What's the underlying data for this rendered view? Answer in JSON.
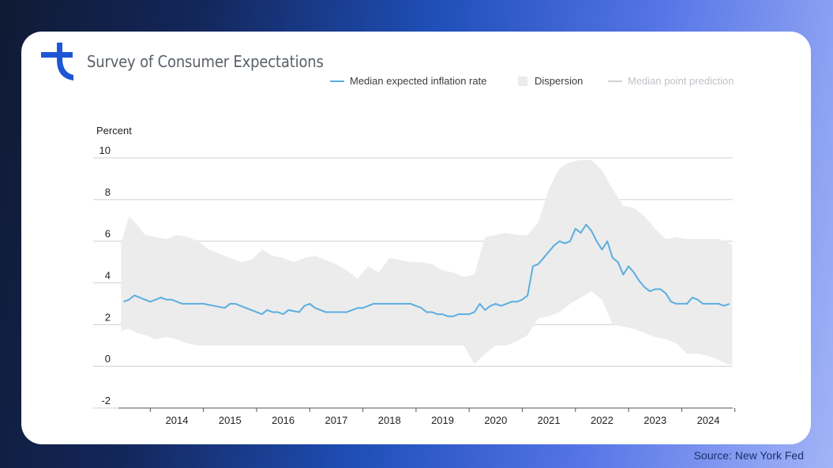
{
  "header": {
    "title": "Survey of Consumer Expectations",
    "logo_icon": "brand-logo-icon"
  },
  "footer": {
    "source": "Source: New York Fed"
  },
  "colors": {
    "accent": "#1e56d6",
    "series_line": "#5aaee0",
    "band": "#ececec"
  },
  "chart_data": {
    "type": "line",
    "title": "",
    "ylabel": "Percent",
    "xlabel": "",
    "ylim": [
      -2,
      10
    ],
    "xlim": [
      2013.4,
      2024.96
    ],
    "yticks": [
      "10",
      "8",
      "6",
      "4",
      "2",
      "0",
      "-2"
    ],
    "xticks": [
      "2014",
      "2015",
      "2016",
      "2017",
      "2018",
      "2019",
      "2020",
      "2021",
      "2022",
      "2023",
      "2024"
    ],
    "legend": [
      "Median expected inflation rate",
      "Dispersion",
      "Median point prediction"
    ],
    "legend_position": "top-right",
    "series": [
      {
        "name": "Median expected inflation rate",
        "x": [
          2013.5,
          2013.6,
          2013.7,
          2013.8,
          2013.9,
          2014.0,
          2014.1,
          2014.2,
          2014.3,
          2014.4,
          2014.5,
          2014.6,
          2014.8,
          2015.0,
          2015.2,
          2015.4,
          2015.5,
          2015.6,
          2015.7,
          2015.8,
          2016.0,
          2016.1,
          2016.2,
          2016.3,
          2016.4,
          2016.5,
          2016.6,
          2016.8,
          2016.9,
          2017.0,
          2017.1,
          2017.2,
          2017.3,
          2017.4,
          2017.5,
          2017.7,
          2017.9,
          2018.0,
          2018.2,
          2018.3,
          2018.4,
          2018.5,
          2018.6,
          2018.7,
          2018.9,
          2019.0,
          2019.1,
          2019.2,
          2019.3,
          2019.4,
          2019.5,
          2019.6,
          2019.7,
          2019.8,
          2019.9,
          2020.0,
          2020.1,
          2020.2,
          2020.3,
          2020.4,
          2020.5,
          2020.6,
          2020.7,
          2020.8,
          2020.9,
          2021.0,
          2021.1,
          2021.2,
          2021.3,
          2021.4,
          2021.5,
          2021.6,
          2021.7,
          2021.8,
          2021.9,
          2022.0,
          2022.1,
          2022.2,
          2022.3,
          2022.4,
          2022.5,
          2022.6,
          2022.7,
          2022.8,
          2022.9,
          2023.0,
          2023.1,
          2023.2,
          2023.3,
          2023.4,
          2023.5,
          2023.6,
          2023.7,
          2023.8,
          2023.9,
          2024.0,
          2024.1,
          2024.2,
          2024.3,
          2024.4,
          2024.5,
          2024.6,
          2024.7,
          2024.8,
          2024.9
        ],
        "values": [
          3.1,
          3.2,
          3.4,
          3.3,
          3.2,
          3.1,
          3.2,
          3.3,
          3.2,
          3.2,
          3.1,
          3.0,
          3.0,
          3.0,
          2.9,
          2.8,
          3.0,
          3.0,
          2.9,
          2.8,
          2.6,
          2.5,
          2.7,
          2.6,
          2.6,
          2.5,
          2.7,
          2.6,
          2.9,
          3.0,
          2.8,
          2.7,
          2.6,
          2.6,
          2.6,
          2.6,
          2.8,
          2.8,
          3.0,
          3.0,
          3.0,
          3.0,
          3.0,
          3.0,
          3.0,
          2.9,
          2.8,
          2.6,
          2.6,
          2.5,
          2.5,
          2.4,
          2.4,
          2.5,
          2.5,
          2.5,
          2.6,
          3.0,
          2.7,
          2.9,
          3.0,
          2.9,
          3.0,
          3.1,
          3.1,
          3.2,
          3.4,
          4.8,
          4.9,
          5.2,
          5.5,
          5.8,
          6.0,
          5.9,
          6.0,
          6.6,
          6.4,
          6.8,
          6.5,
          6.0,
          5.6,
          6.0,
          5.2,
          5.0,
          4.4,
          4.8,
          4.5,
          4.1,
          3.8,
          3.6,
          3.7,
          3.7,
          3.5,
          3.1,
          3.0,
          3.0,
          3.0,
          3.3,
          3.2,
          3.0,
          3.0,
          3.0,
          3.0,
          2.9,
          3.0
        ]
      }
    ],
    "dispersion": {
      "x": [
        2013.45,
        2013.6,
        2013.75,
        2013.9,
        2014.1,
        2014.3,
        2014.5,
        2014.7,
        2014.9,
        2015.1,
        2015.3,
        2015.5,
        2015.7,
        2015.9,
        2016.1,
        2016.3,
        2016.5,
        2016.7,
        2016.9,
        2017.1,
        2017.3,
        2017.5,
        2017.7,
        2017.9,
        2018.1,
        2018.3,
        2018.5,
        2018.7,
        2018.9,
        2019.1,
        2019.3,
        2019.5,
        2019.7,
        2019.9,
        2020.1,
        2020.3,
        2020.5,
        2020.7,
        2020.9,
        2021.1,
        2021.3,
        2021.5,
        2021.7,
        2021.9,
        2022.1,
        2022.3,
        2022.5,
        2022.7,
        2022.9,
        2023.1,
        2023.3,
        2023.5,
        2023.7,
        2023.9,
        2024.1,
        2024.3,
        2024.5,
        2024.7,
        2024.85,
        2024.95
      ],
      "upper": [
        5.9,
        7.2,
        6.8,
        6.3,
        6.2,
        6.1,
        6.3,
        6.2,
        6.0,
        5.6,
        5.4,
        5.2,
        5.0,
        5.1,
        5.6,
        5.3,
        5.2,
        5.0,
        5.2,
        5.3,
        5.1,
        4.9,
        4.6,
        4.2,
        4.8,
        4.5,
        5.2,
        5.1,
        5.0,
        5.0,
        4.9,
        4.6,
        4.5,
        4.3,
        4.4,
        6.2,
        6.3,
        6.4,
        6.3,
        6.3,
        6.9,
        8.5,
        9.5,
        9.8,
        9.9,
        9.9,
        9.4,
        8.5,
        7.7,
        7.6,
        7.2,
        6.6,
        6.1,
        6.2,
        6.1,
        6.1,
        6.1,
        6.1,
        6.0,
        5.8
      ],
      "lower": [
        1.7,
        1.8,
        1.6,
        1.5,
        1.3,
        1.4,
        1.3,
        1.1,
        1.0,
        1.0,
        1.0,
        1.0,
        1.0,
        1.0,
        1.0,
        1.0,
        1.0,
        1.0,
        1.0,
        1.0,
        1.0,
        1.0,
        1.0,
        1.0,
        1.0,
        1.0,
        1.0,
        1.0,
        1.0,
        1.0,
        1.0,
        1.0,
        1.0,
        1.0,
        0.1,
        0.6,
        1.0,
        1.0,
        1.2,
        1.5,
        2.3,
        2.4,
        2.6,
        3.0,
        3.3,
        3.6,
        3.2,
        2.0,
        1.9,
        1.8,
        1.6,
        1.4,
        1.3,
        1.1,
        0.6,
        0.6,
        0.5,
        0.3,
        0.1,
        0.1
      ]
    }
  }
}
